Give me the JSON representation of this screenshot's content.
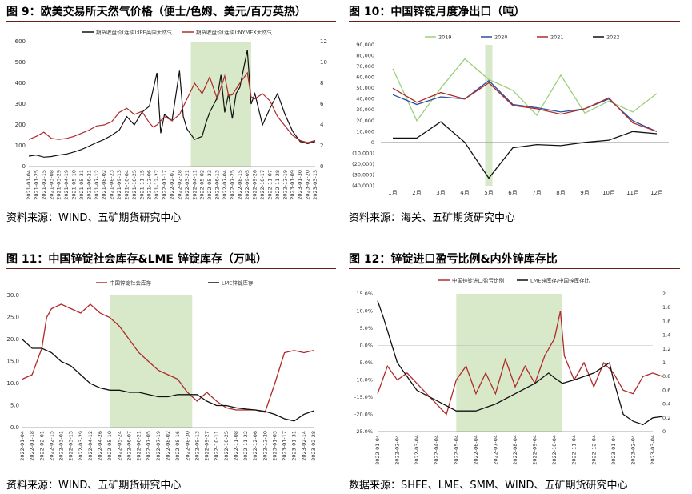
{
  "colors": {
    "red": "#b02a2a",
    "black": "#111111",
    "green_band": "#d7e9c8",
    "blue": "#2c4fa3",
    "light_green": "#9ccf7c",
    "rule": "#6d1b1b"
  },
  "panels": [
    {
      "title": "图 9：欧美交易所天然气价格（便士/色姆、美元/百万英热）",
      "source": "资料来源：WIND、五矿期货研究中心",
      "chart_data": {
        "type": "line",
        "legend": [
          "期货收盘价(连续):IPE英国天然气",
          "期货收盘价(连续):NYMEX天然气"
        ],
        "x_ticks": [
          "2021-01-04",
          "2021-01-25",
          "2021-02-15",
          "2021-03-08",
          "2021-03-29",
          "2021-04-19",
          "2021-05-10",
          "2021-05-31",
          "2021-06-21",
          "2021-07-12",
          "2021-08-02",
          "2021-08-23",
          "2021-09-13",
          "2021-10-04",
          "2021-10-25",
          "2021-11-15",
          "2021-12-06",
          "2021-12-27",
          "2022-01-17",
          "2022-02-07",
          "2022-02-28",
          "2022-03-21",
          "2022-04-11",
          "2022-05-02",
          "2022-05-23",
          "2022-06-13",
          "2022-07-04",
          "2022-07-25",
          "2022-08-15",
          "2022-09-05",
          "2022-09-26",
          "2022-10-17",
          "2022-11-07",
          "2022-11-28",
          "2022-12-19",
          "2023-01-09",
          "2023-01-30",
          "2023-02-20",
          "2023-03-13"
        ],
        "y_left": [
          0,
          100,
          200,
          300,
          400,
          500,
          600
        ],
        "y_right": [
          0,
          2,
          4,
          6,
          8,
          10,
          12
        ],
        "band": [
          21.5,
          29.5
        ],
        "series": [
          {
            "name": "期货收盘价(连续):IPE英国天然气",
            "axis": "left",
            "color": "#111111",
            "x": [
              0,
              1,
              2,
              3,
              4,
              5,
              6,
              7,
              8,
              9,
              10,
              11,
              12,
              13,
              14,
              15,
              16,
              17,
              17.5,
              18,
              19,
              20,
              20.5,
              21,
              22,
              23,
              23.5,
              24,
              25,
              25.5,
              26,
              26.5,
              27,
              27.5,
              28,
              29,
              29.5,
              30,
              31,
              32,
              33,
              34,
              35,
              36,
              37,
              38
            ],
            "y": [
              50,
              55,
              45,
              48,
              55,
              60,
              70,
              82,
              98,
              115,
              130,
              150,
              175,
              240,
              200,
              260,
              290,
              450,
              160,
              250,
              220,
              460,
              240,
              180,
              130,
              145,
              210,
              260,
              330,
              440,
              260,
              350,
              230,
              350,
              380,
              560,
              300,
              350,
              200,
              280,
              350,
              250,
              170,
              120,
              110,
              120
            ]
          },
          {
            "name": "期货收盘价(连续):NYMEX天然气",
            "axis": "right",
            "color": "#b02a2a",
            "x": [
              0,
              1,
              2,
              3,
              4,
              5,
              6,
              7,
              8,
              9,
              10,
              11,
              12,
              13,
              14,
              15,
              16,
              16.5,
              17,
              18,
              19,
              20,
              21,
              22,
              23,
              24,
              25,
              26,
              26.5,
              27,
              28,
              29,
              29.5,
              30,
              31,
              32,
              33,
              34,
              35,
              36,
              37,
              38
            ],
            "y": [
              2.6,
              2.9,
              3.3,
              2.7,
              2.6,
              2.7,
              2.9,
              3.2,
              3.5,
              3.9,
              4.0,
              4.3,
              5.2,
              5.6,
              5.0,
              5.3,
              4.2,
              3.8,
              4.0,
              4.8,
              4.4,
              5.0,
              6.5,
              8.0,
              7.0,
              8.6,
              6.5,
              8.7,
              6.8,
              6.9,
              8.0,
              9.0,
              6.7,
              6.5,
              7.0,
              6.3,
              4.8,
              3.9,
              3.0,
              2.5,
              2.3,
              2.5
            ]
          }
        ]
      }
    },
    {
      "title": "图 10：中国锌锭月度净出口（吨）",
      "source": "资料来源：海关、五矿期货研究中心",
      "chart_data": {
        "type": "line",
        "categories": [
          "1月",
          "2月",
          "3月",
          "4月",
          "5月",
          "6月",
          "7月",
          "8月",
          "9月",
          "10月",
          "11月",
          "12月"
        ],
        "y_ticks": [
          "(40,000)",
          "(30,000)",
          "(20,000)",
          "(10,000)",
          "0",
          "10,000",
          "20,000",
          "30,000",
          "40,000",
          "50,000",
          "60,000",
          "70,000",
          "80,000",
          "90,000"
        ],
        "ylim": [
          -40000,
          90000
        ],
        "band": [
          3.85,
          4.15
        ],
        "series": [
          {
            "name": "2019",
            "color": "#9ccf7c",
            "values": [
              68000,
              20000,
              50000,
              77000,
              58000,
              48000,
              25000,
              62000,
              27000,
              38000,
              28000,
              45000
            ]
          },
          {
            "name": "2020",
            "color": "#2c4fa3",
            "values": [
              44000,
              35000,
              42000,
              40000,
              57000,
              35000,
              32000,
              28000,
              31000,
              40000,
              20000,
              10000
            ]
          },
          {
            "name": "2021",
            "color": "#b02a2a",
            "values": [
              50000,
              37000,
              46000,
              40000,
              55000,
              34000,
              31000,
              26000,
              31000,
              41000,
              18000,
              10000
            ]
          },
          {
            "name": "2022",
            "color": "#111111",
            "values": [
              4000,
              4000,
              19000,
              0,
              -33000,
              -5000,
              -2000,
              -3000,
              0,
              2000,
              10000,
              8000
            ]
          }
        ]
      }
    },
    {
      "title": "图 11：中国锌锭社会库存&LME 锌锭库存（万吨）",
      "source": "资料来源：WIND、五矿期货研究中心",
      "chart_data": {
        "type": "line",
        "x_ticks": [
          "2022-01-04",
          "2022-01-18",
          "2022-02-01",
          "2022-02-15",
          "2022-03-01",
          "2022-03-15",
          "2022-03-29",
          "2022-04-12",
          "2022-04-26",
          "2022-05-10",
          "2022-05-24",
          "2022-06-07",
          "2022-06-21",
          "2022-07-05",
          "2022-07-19",
          "2022-08-02",
          "2022-08-16",
          "2022-08-30",
          "2022-09-13",
          "2022-09-27",
          "2022-10-11",
          "2022-10-25",
          "2022-11-08",
          "2022-11-22",
          "2022-12-06",
          "2022-12-20",
          "2023-01-03",
          "2023-01-17",
          "2023-01-31",
          "2023-02-14",
          "2023-02-28"
        ],
        "y_ticks": [
          0,
          5,
          10,
          15,
          20,
          25,
          30
        ],
        "ylim": [
          0,
          30
        ],
        "band": [
          9,
          17.5
        ],
        "series": [
          {
            "name": "中国锌锭社会库存",
            "color": "#b02a2a",
            "x": [
              0,
              1,
              2,
              2.5,
              3,
              4,
              5,
              6,
              6.5,
              7,
              8,
              9,
              10,
              11,
              12,
              13,
              14,
              15,
              16,
              17,
              18,
              19,
              20,
              21,
              22,
              23,
              24,
              25,
              26,
              27,
              28,
              29,
              30
            ],
            "y": [
              11,
              12,
              18,
              25,
              27,
              28,
              27,
              26,
              27,
              28,
              26,
              25,
              23,
              20,
              17,
              15,
              13,
              12,
              11,
              8,
              6,
              8,
              6,
              4.5,
              4,
              4,
              4,
              3.5,
              10,
              17,
              17.5,
              17,
              17.5
            ]
          },
          {
            "name": "LME锌锭库存",
            "color": "#111111",
            "x": [
              0,
              1,
              2,
              3,
              4,
              5,
              6,
              7,
              8,
              9,
              10,
              11,
              12,
              13,
              14,
              15,
              16,
              17,
              18,
              19,
              20,
              21,
              22,
              23,
              24,
              25,
              26,
              27,
              28,
              29,
              30
            ],
            "y": [
              20,
              18,
              18,
              17,
              15,
              14,
              12,
              10,
              9,
              8.5,
              8.5,
              8,
              8,
              7.5,
              7,
              7,
              7.5,
              7.5,
              7.5,
              6,
              5,
              5,
              4.5,
              4.2,
              4,
              3.7,
              3,
              2,
              1.5,
              3,
              3.8
            ]
          }
        ]
      }
    },
    {
      "title": "图 12：锌锭进口盈亏比例&内外锌库存比",
      "source": "数据来源：SHFE、LME、SMM、WIND、五矿期货研究中心",
      "chart_data": {
        "type": "line",
        "x_ticks": [
          "2022-01-04",
          "2022-02-04",
          "2022-03-04",
          "2022-04-04",
          "2022-05-04",
          "2022-06-04",
          "2022-07-04",
          "2022-08-04",
          "2022-09-04",
          "2022-10-04",
          "2022-11-04",
          "2022-12-04",
          "2023-01-04",
          "2023-02-04",
          "2023-03-04"
        ],
        "y_left": [
          "-25.0%",
          "-20.0%",
          "-15.0%",
          "-10.0%",
          "-5.0%",
          "0.0%",
          "5.0%",
          "10.0%",
          "15.0%"
        ],
        "y_right": [
          "0",
          "0.2",
          "0.4",
          "0.6",
          "0.8",
          "1",
          "1.2",
          "1.4",
          "1.6",
          "1.8",
          "2"
        ],
        "band": [
          4.0,
          9.4
        ],
        "series": [
          {
            "name": "中国锌锭进口盈亏比例",
            "axis": "left",
            "color": "#b02a2a",
            "x": [
              0,
              0.5,
              1,
              1.5,
              2,
              2.5,
              3,
              3.5,
              4,
              4.5,
              5,
              5.5,
              6,
              6.5,
              7,
              7.5,
              8,
              8.5,
              9,
              9.3,
              9.5,
              10,
              10.5,
              11,
              11.5,
              12,
              12.5,
              13,
              13.5,
              14,
              14.5
            ],
            "y": [
              -14,
              -6,
              -10,
              -8,
              -11,
              -14,
              -17,
              -20,
              -10,
              -6,
              -14,
              -8,
              -14,
              -4,
              -12,
              -6,
              -11,
              -3,
              2,
              10,
              -3,
              -10,
              -5,
              -12,
              -5,
              -8,
              -13,
              -14,
              -9,
              -8,
              -9
            ]
          },
          {
            "name": "LME锌库存/中国锌库存比",
            "axis": "right",
            "color": "#111111",
            "x": [
              0,
              0.3,
              1,
              2,
              3,
              4,
              5,
              6,
              7,
              8,
              8.7,
              9,
              9.4,
              10,
              11,
              11.8,
              12,
              12.5,
              13,
              13.5,
              14,
              14.5
            ],
            "y": [
              1.9,
              1.65,
              1.0,
              0.6,
              0.45,
              0.3,
              0.3,
              0.4,
              0.55,
              0.7,
              0.85,
              0.78,
              0.7,
              0.75,
              0.85,
              1.0,
              0.75,
              0.25,
              0.15,
              0.1,
              0.2,
              0.22
            ]
          }
        ]
      }
    }
  ]
}
